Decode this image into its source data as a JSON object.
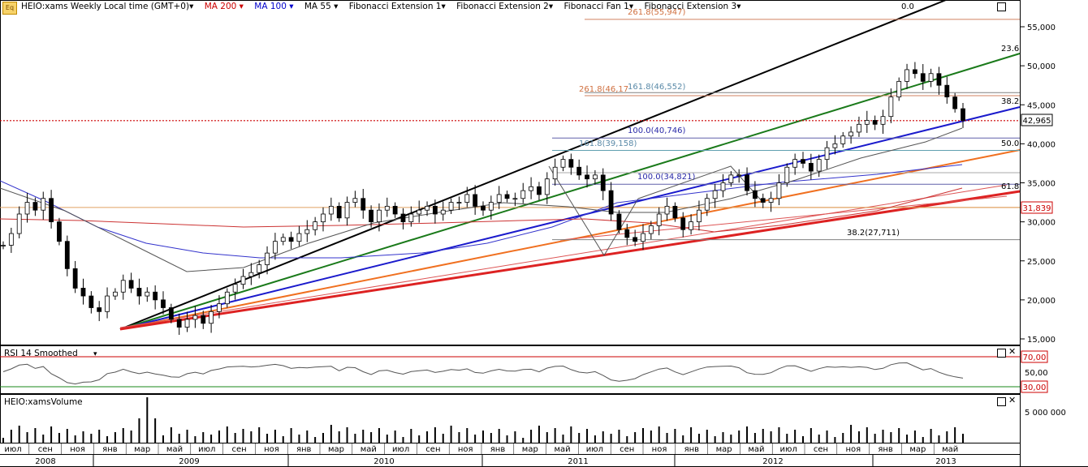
{
  "toolbar": {
    "symbol_label": "HEIO:xams Weekly Local time (GMT+0)",
    "ma200_label": "MA 200",
    "ma100_label": "MA 100",
    "ma55_label": "MA 55",
    "fib_ext1_label": "Fibonacci Extension 1",
    "fib_ext2_label": "Fibonacci Extension 2",
    "fib_fan1_label": "Fibonacci Fan 1",
    "fib_ext3_label": "Fibonacci Extension 3",
    "ma200_color": "#cc0000",
    "ma100_color": "#0000cc"
  },
  "rsi_panel": {
    "title": "RSI 14 Smoothed",
    "upper_label": "70,00",
    "mid_label": "50,00",
    "lower_label": "30,00"
  },
  "volume_panel": {
    "title": "HEIO:xamsVolume",
    "axis_label": "5 000 000"
  },
  "chart_data": {
    "type": "candlestick",
    "price_axis": {
      "ticks": [
        15000,
        20000,
        25000,
        30000,
        35000,
        40000,
        45000,
        50000,
        55000
      ],
      "tick_labels": [
        "15,000",
        "20,000",
        "25,000",
        "30,000",
        "35,000",
        "40,000",
        "45,000",
        "50,000",
        "55,000"
      ],
      "range": [
        14000,
        58500
      ]
    },
    "x_axis": {
      "months": [
        "июл",
        "сен",
        "ноя",
        "янв",
        "мар",
        "май",
        "июл",
        "сен",
        "ноя",
        "янв",
        "мар",
        "май",
        "июл",
        "сен",
        "ноя",
        "янв",
        "мар",
        "май",
        "июл",
        "сен",
        "ноя",
        "янв",
        "мар",
        "май",
        "июл",
        "сен",
        "ноя",
        "янв",
        "мар",
        "май"
      ],
      "years": [
        "2008",
        "2009",
        "2010",
        "2011",
        "2012",
        "2013"
      ]
    },
    "current_price": {
      "value": 42965,
      "label": "42,965"
    },
    "horizontal_level": {
      "value": 31839,
      "label": "31,839"
    },
    "weekly_close": [
      27000,
      28500,
      31000,
      32500,
      31500,
      33000,
      30000,
      27500,
      24000,
      21500,
      20500,
      19000,
      18500,
      20500,
      21000,
      22500,
      21500,
      20500,
      21000,
      20000,
      19000,
      17500,
      16500,
      17500,
      18000,
      17000,
      18500,
      19500,
      21000,
      22000,
      23000,
      23500,
      24500,
      26000,
      27500,
      28000,
      27500,
      28500,
      29000,
      30000,
      31000,
      32000,
      30500,
      32500,
      33000,
      31500,
      30000,
      31500,
      32000,
      31000,
      30000,
      31000,
      31500,
      32000,
      31000,
      31500,
      32500,
      32500,
      33500,
      32000,
      31500,
      32500,
      33500,
      33000,
      33000,
      34000,
      34500,
      33500,
      35500,
      37000,
      38000,
      37000,
      36000,
      35500,
      36000,
      34000,
      31000,
      29000,
      28000,
      27500,
      28500,
      29500,
      31000,
      32000,
      30500,
      29000,
      30000,
      31500,
      33000,
      34000,
      35000,
      36000,
      36000,
      34000,
      33000,
      32500,
      33000,
      35000,
      37000,
      38000,
      37500,
      36500,
      38000,
      39500,
      40000,
      41000,
      41500,
      42500,
      43000,
      42500,
      43500,
      46000,
      48000,
      49500,
      49000,
      48000,
      49000,
      47500,
      46000,
      44500,
      43000
    ],
    "rsi_smoothed_range": [
      30,
      70
    ],
    "annotations": [
      {
        "label": "0.0",
        "value_kind": "fan"
      },
      {
        "label": "23.6",
        "value_kind": "fan"
      },
      {
        "label": "38.2",
        "value_kind": "fan"
      },
      {
        "label": "50.0",
        "value_kind": "fan"
      },
      {
        "label": "61.8",
        "value_kind": "fan"
      },
      {
        "label": "261.8(55,947)",
        "value": 55947
      },
      {
        "label": "261.8(46,17",
        "value": 46170
      },
      {
        "label": "161.8(46,552)",
        "value": 46552
      },
      {
        "label": "100.0(40,746)",
        "value": 40746
      },
      {
        "label": "161.8(39,158)",
        "value": 39158
      },
      {
        "label": "100.0(34,821)",
        "value": 34821
      },
      {
        "label": "38.2(27,711)",
        "value": 27711
      }
    ]
  }
}
